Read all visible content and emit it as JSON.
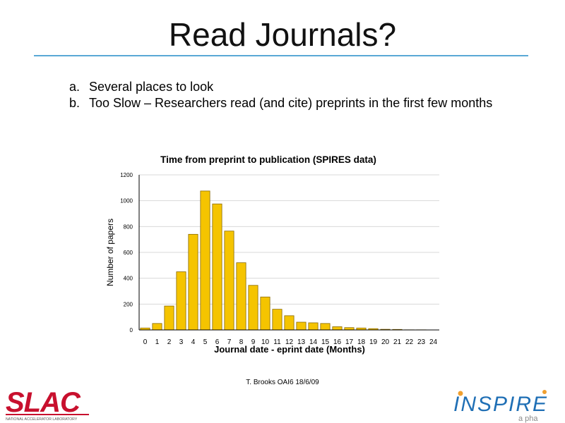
{
  "slide": {
    "title": "Read Journals?",
    "bullets": [
      {
        "marker": "a.",
        "text": "Several places to look"
      },
      {
        "marker": "b.",
        "text": "Too Slow – Researchers read (and cite) preprints in the first few months"
      }
    ],
    "footer": "T. Brooks OAI6 18/6/09",
    "logos": {
      "slac_text": "SLAC",
      "slac_subtext": "NATIONAL ACCELERATOR LABORATORY",
      "inspire_text": "INSPIRE",
      "inspire_subtext": "a pha"
    }
  },
  "colors": {
    "bar_fill": "#f5c400",
    "bar_stroke": "#8a6a00",
    "rule": "#5aa8d6",
    "slac_red": "#c8102e",
    "inspire_blue": "#1f6fb5",
    "inspire_orange": "#f0a030"
  },
  "chart_data": {
    "type": "bar",
    "title": "Time from preprint to publication (SPIRES data)",
    "xlabel": "Journal date - eprint date (Months)",
    "ylabel": "Number of papers",
    "categories": [
      "0",
      "1",
      "2",
      "3",
      "4",
      "5",
      "6",
      "7",
      "8",
      "9",
      "10",
      "11",
      "12",
      "13",
      "14",
      "15",
      "16",
      "17",
      "18",
      "19",
      "20",
      "21",
      "22",
      "23",
      "24"
    ],
    "values": [
      15,
      50,
      185,
      450,
      740,
      1075,
      975,
      765,
      520,
      345,
      255,
      160,
      110,
      60,
      55,
      50,
      25,
      18,
      15,
      10,
      5,
      4,
      1,
      1,
      0
    ],
    "ylim": [
      0,
      1200
    ],
    "yticks": [
      "0",
      "200",
      "400",
      "600",
      "800",
      "1000",
      "1200"
    ],
    "grid": true,
    "legend": "none"
  }
}
